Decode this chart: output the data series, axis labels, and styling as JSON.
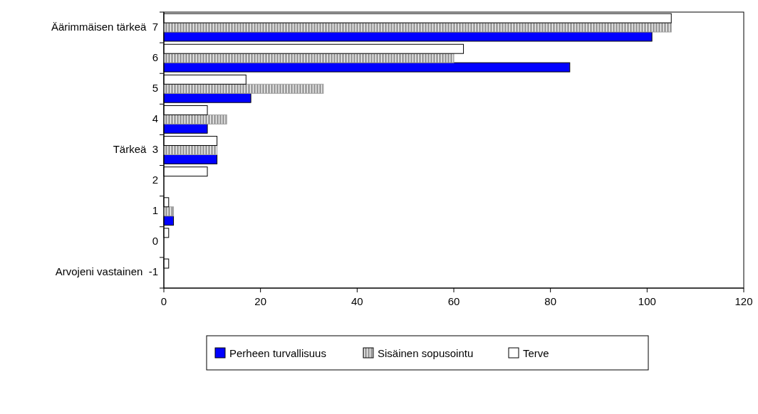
{
  "chart_data": {
    "type": "bar",
    "orientation": "horizontal",
    "categories": [
      "Äärimmäisen tärkeä  7",
      "6",
      "5",
      "4",
      "Tärkeä  3",
      "2",
      "1",
      "0",
      "Arvojeni vastainen  -1"
    ],
    "series": [
      {
        "name": "Perheen turvallisuus",
        "color": "#0000ff",
        "values": [
          101,
          84,
          18,
          9,
          11,
          0,
          2,
          0,
          0
        ]
      },
      {
        "name": "Sisäinen sopusointu",
        "color": "#a0a0a0",
        "values": [
          105,
          60,
          33,
          13,
          11,
          0,
          2,
          0,
          0
        ]
      },
      {
        "name": "Terve",
        "color": "#ffffff",
        "values": [
          105,
          62,
          17,
          9,
          11,
          9,
          1,
          1,
          1
        ]
      }
    ],
    "xlim": [
      0,
      120
    ],
    "xticks": [
      0,
      20,
      40,
      60,
      80,
      100,
      120
    ],
    "grid": false,
    "legend": "bottom"
  }
}
